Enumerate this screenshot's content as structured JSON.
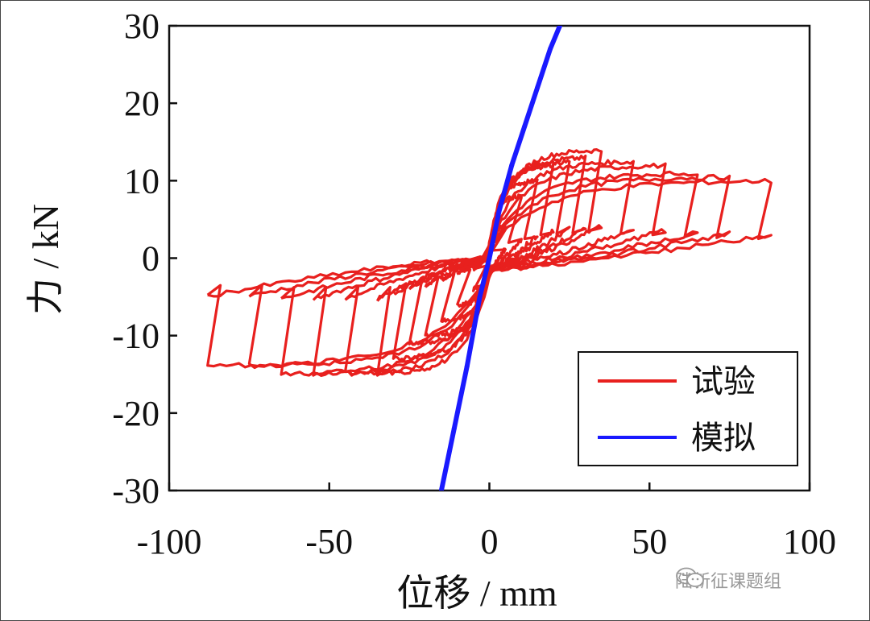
{
  "chart_data": {
    "type": "line",
    "title": "",
    "xlabel": "位移 / mm",
    "ylabel": "力 / kN",
    "xlim": [
      -100,
      100
    ],
    "ylim": [
      -30,
      30
    ],
    "xticks": [
      -100,
      -50,
      0,
      50,
      100
    ],
    "yticks": [
      -30,
      -20,
      -10,
      0,
      10,
      20,
      30
    ],
    "grid": false,
    "legend_position": "bottom-right",
    "series": [
      {
        "name": "试验",
        "color": "#e8201e",
        "loops": [
          {
            "xmax": 5,
            "fmax": 4,
            "xmin": -5,
            "fmin": -4
          },
          {
            "xmax": 10,
            "fmax": 8,
            "xmin": -10,
            "fmin": -6
          },
          {
            "xmax": 15,
            "fmax": 10,
            "xmin": -15,
            "fmin": -8
          },
          {
            "xmax": 20,
            "fmax": 12,
            "xmin": -20,
            "fmin": -10
          },
          {
            "xmax": 25,
            "fmax": 12.5,
            "xmin": -25,
            "fmin": -11
          },
          {
            "xmax": 30,
            "fmax": 13,
            "xmin": -30,
            "fmin": -13
          },
          {
            "xmax": 35,
            "fmax": 14,
            "xmin": -35,
            "fmin": -15
          },
          {
            "xmax": 45,
            "fmax": 12.5,
            "xmin": -45,
            "fmin": -15
          },
          {
            "xmax": 55,
            "fmax": 12,
            "xmin": -55,
            "fmin": -15
          },
          {
            "xmax": 65,
            "fmax": 11,
            "xmin": -65,
            "fmin": -15
          },
          {
            "xmax": 75,
            "fmax": 10.5,
            "xmin": -75,
            "fmin": -14
          },
          {
            "xmax": 88,
            "fmax": 10,
            "xmin": -88,
            "fmin": -14
          }
        ]
      },
      {
        "name": "模拟",
        "color": "#1a1aff",
        "x": [
          -15,
          -11,
          -7,
          -3,
          0,
          3,
          7,
          11,
          15,
          19,
          22
        ],
        "y": [
          -30,
          -22,
          -14,
          -5,
          0,
          6,
          12,
          17,
          22,
          27,
          30
        ]
      }
    ]
  },
  "watermark": {
    "text": "陆新征课题组",
    "icon": "wechat-icon"
  }
}
